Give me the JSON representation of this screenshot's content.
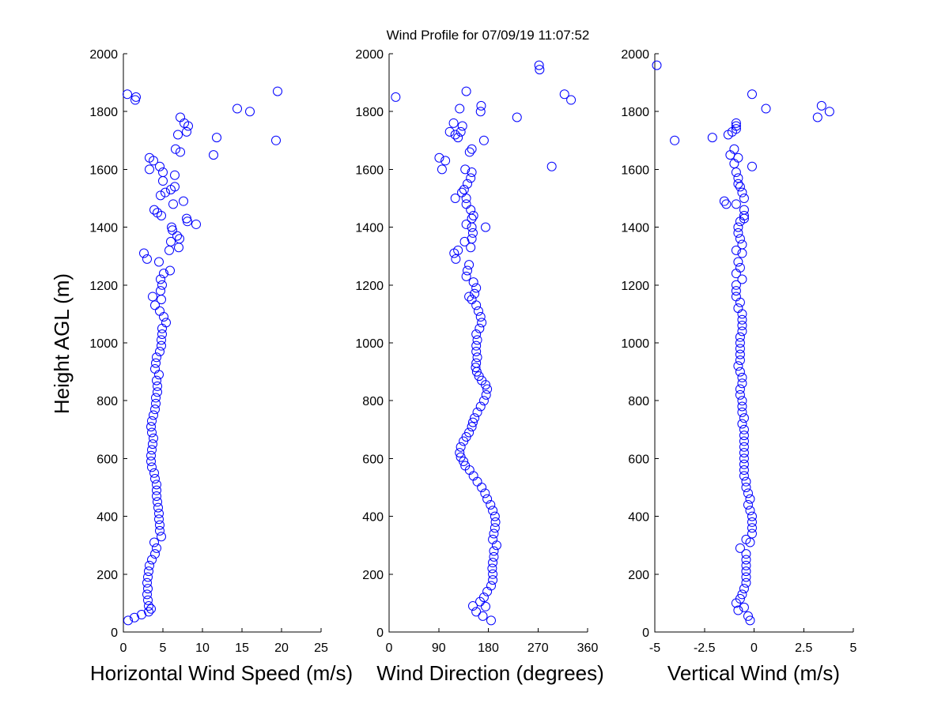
{
  "figure": {
    "title": "Wind Profile for  07/09/19 11:07:52",
    "ylabel": "Height AGL (m)"
  },
  "chart_data": [
    {
      "type": "scatter",
      "xlabel": "Horizontal Wind Speed (m/s)",
      "ylabel": "Height AGL (m)",
      "xlim": [
        0,
        25
      ],
      "ylim": [
        0,
        2000
      ],
      "xticks": [
        0,
        5,
        10,
        15,
        20,
        25
      ],
      "xtick_labels": [
        "0",
        "5",
        "10",
        "15",
        "20",
        "25"
      ],
      "yticks": [
        0,
        200,
        400,
        600,
        800,
        1000,
        1200,
        1400,
        1600,
        1800,
        2000
      ],
      "ytick_labels": [
        "0",
        "200",
        "400",
        "600",
        "800",
        "1000",
        "1200",
        "1400",
        "1600",
        "1800",
        "2000"
      ],
      "marker": "circle",
      "color": "#0000ff",
      "points": [
        [
          0.6,
          40
        ],
        [
          1.4,
          50
        ],
        [
          2.3,
          60
        ],
        [
          3.2,
          70
        ],
        [
          3.5,
          80
        ],
        [
          3.2,
          90
        ],
        [
          3.1,
          110
        ],
        [
          3.0,
          130
        ],
        [
          3.1,
          150
        ],
        [
          3.0,
          170
        ],
        [
          3.1,
          190
        ],
        [
          3.2,
          210
        ],
        [
          3.3,
          230
        ],
        [
          3.6,
          250
        ],
        [
          4.0,
          270
        ],
        [
          4.2,
          290
        ],
        [
          3.9,
          310
        ],
        [
          4.8,
          330
        ],
        [
          4.6,
          350
        ],
        [
          4.6,
          370
        ],
        [
          4.5,
          390
        ],
        [
          4.5,
          410
        ],
        [
          4.4,
          430
        ],
        [
          4.3,
          450
        ],
        [
          4.2,
          470
        ],
        [
          4.2,
          490
        ],
        [
          4.2,
          510
        ],
        [
          4.0,
          530
        ],
        [
          3.9,
          550
        ],
        [
          3.6,
          570
        ],
        [
          3.5,
          590
        ],
        [
          3.5,
          610
        ],
        [
          3.6,
          630
        ],
        [
          3.7,
          650
        ],
        [
          3.8,
          670
        ],
        [
          3.6,
          690
        ],
        [
          3.5,
          710
        ],
        [
          3.6,
          730
        ],
        [
          3.8,
          750
        ],
        [
          4.0,
          770
        ],
        [
          4.1,
          790
        ],
        [
          4.1,
          810
        ],
        [
          4.3,
          830
        ],
        [
          4.3,
          850
        ],
        [
          4.2,
          870
        ],
        [
          4.5,
          890
        ],
        [
          4.0,
          910
        ],
        [
          4.1,
          930
        ],
        [
          4.2,
          950
        ],
        [
          4.6,
          970
        ],
        [
          4.8,
          990
        ],
        [
          4.8,
          1010
        ],
        [
          4.9,
          1030
        ],
        [
          4.9,
          1050
        ],
        [
          5.4,
          1070
        ],
        [
          5.1,
          1090
        ],
        [
          4.6,
          1110
        ],
        [
          4.0,
          1130
        ],
        [
          4.8,
          1150
        ],
        [
          3.7,
          1160
        ],
        [
          4.7,
          1180
        ],
        [
          4.9,
          1200
        ],
        [
          4.7,
          1220
        ],
        [
          5.1,
          1240
        ],
        [
          5.9,
          1250
        ],
        [
          4.5,
          1280
        ],
        [
          3.0,
          1290
        ],
        [
          2.6,
          1310
        ],
        [
          5.8,
          1320
        ],
        [
          7.0,
          1330
        ],
        [
          6.0,
          1350
        ],
        [
          7.1,
          1360
        ],
        [
          6.8,
          1370
        ],
        [
          6.2,
          1390
        ],
        [
          6.1,
          1400
        ],
        [
          9.2,
          1410
        ],
        [
          8.1,
          1420
        ],
        [
          8.0,
          1430
        ],
        [
          4.8,
          1440
        ],
        [
          4.3,
          1450
        ],
        [
          3.9,
          1460
        ],
        [
          6.3,
          1480
        ],
        [
          7.6,
          1490
        ],
        [
          4.7,
          1510
        ],
        [
          5.3,
          1520
        ],
        [
          6.0,
          1530
        ],
        [
          6.5,
          1540
        ],
        [
          5.0,
          1560
        ],
        [
          6.5,
          1580
        ],
        [
          5.0,
          1590
        ],
        [
          3.3,
          1600
        ],
        [
          4.6,
          1610
        ],
        [
          3.8,
          1630
        ],
        [
          3.3,
          1640
        ],
        [
          11.4,
          1650
        ],
        [
          7.2,
          1660
        ],
        [
          6.6,
          1670
        ],
        [
          19.3,
          1700
        ],
        [
          11.8,
          1710
        ],
        [
          6.9,
          1720
        ],
        [
          8.0,
          1730
        ],
        [
          8.2,
          1750
        ],
        [
          7.7,
          1760
        ],
        [
          7.2,
          1780
        ],
        [
          16.0,
          1800
        ],
        [
          14.4,
          1810
        ],
        [
          1.5,
          1840
        ],
        [
          1.6,
          1850
        ],
        [
          0.5,
          1860
        ],
        [
          19.5,
          1870
        ]
      ]
    },
    {
      "type": "scatter",
      "xlabel": "Wind Direction (degrees)",
      "ylabel": "",
      "xlim": [
        0,
        360
      ],
      "ylim": [
        0,
        2000
      ],
      "xticks": [
        0,
        90,
        180,
        270,
        360
      ],
      "xtick_labels": [
        "0",
        "90",
        "180",
        "270",
        "360"
      ],
      "yticks": [
        0,
        200,
        400,
        600,
        800,
        1000,
        1200,
        1400,
        1600,
        1800,
        2000
      ],
      "ytick_labels": [
        "0",
        "200",
        "400",
        "600",
        "800",
        "1000",
        "1200",
        "1400",
        "1600",
        "1800",
        "2000"
      ],
      "marker": "circle",
      "color": "#0000ff",
      "points": [
        [
          185,
          40
        ],
        [
          170,
          55
        ],
        [
          158,
          70
        ],
        [
          152,
          90
        ],
        [
          175,
          88
        ],
        [
          165,
          105
        ],
        [
          172,
          120
        ],
        [
          178,
          140
        ],
        [
          185,
          160
        ],
        [
          188,
          180
        ],
        [
          188,
          200
        ],
        [
          187,
          220
        ],
        [
          188,
          240
        ],
        [
          190,
          260
        ],
        [
          190,
          280
        ],
        [
          195,
          300
        ],
        [
          188,
          320
        ],
        [
          190,
          340
        ],
        [
          192,
          360
        ],
        [
          193,
          380
        ],
        [
          192,
          400
        ],
        [
          188,
          420
        ],
        [
          184,
          440
        ],
        [
          178,
          460
        ],
        [
          174,
          480
        ],
        [
          168,
          500
        ],
        [
          160,
          520
        ],
        [
          153,
          540
        ],
        [
          146,
          560
        ],
        [
          138,
          575
        ],
        [
          135,
          590
        ],
        [
          130,
          605
        ],
        [
          128,
          620
        ],
        [
          130,
          640
        ],
        [
          135,
          660
        ],
        [
          140,
          675
        ],
        [
          145,
          690
        ],
        [
          150,
          710
        ],
        [
          152,
          725
        ],
        [
          155,
          740
        ],
        [
          160,
          760
        ],
        [
          166,
          780
        ],
        [
          172,
          800
        ],
        [
          176,
          820
        ],
        [
          178,
          840
        ],
        [
          175,
          855
        ],
        [
          168,
          870
        ],
        [
          163,
          885
        ],
        [
          159,
          900
        ],
        [
          157,
          915
        ],
        [
          158,
          930
        ],
        [
          160,
          950
        ],
        [
          158,
          970
        ],
        [
          158,
          990
        ],
        [
          160,
          1010
        ],
        [
          158,
          1030
        ],
        [
          164,
          1050
        ],
        [
          168,
          1070
        ],
        [
          166,
          1090
        ],
        [
          162,
          1110
        ],
        [
          158,
          1130
        ],
        [
          150,
          1150
        ],
        [
          145,
          1160
        ],
        [
          155,
          1170
        ],
        [
          158,
          1190
        ],
        [
          153,
          1210
        ],
        [
          140,
          1230
        ],
        [
          142,
          1250
        ],
        [
          145,
          1270
        ],
        [
          121,
          1290
        ],
        [
          118,
          1310
        ],
        [
          125,
          1320
        ],
        [
          148,
          1330
        ],
        [
          137,
          1350
        ],
        [
          150,
          1360
        ],
        [
          152,
          1380
        ],
        [
          150,
          1400
        ],
        [
          175,
          1400
        ],
        [
          140,
          1410
        ],
        [
          150,
          1430
        ],
        [
          153,
          1440
        ],
        [
          148,
          1460
        ],
        [
          140,
          1480
        ],
        [
          140,
          1500
        ],
        [
          120,
          1500
        ],
        [
          132,
          1520
        ],
        [
          136,
          1530
        ],
        [
          142,
          1550
        ],
        [
          148,
          1570
        ],
        [
          150,
          1590
        ],
        [
          138,
          1600
        ],
        [
          96,
          1600
        ],
        [
          102,
          1630
        ],
        [
          91,
          1640
        ],
        [
          295,
          1610
        ],
        [
          146,
          1660
        ],
        [
          150,
          1670
        ],
        [
          172,
          1700
        ],
        [
          125,
          1710
        ],
        [
          120,
          1720
        ],
        [
          110,
          1730
        ],
        [
          130,
          1730
        ],
        [
          133,
          1750
        ],
        [
          117,
          1760
        ],
        [
          232,
          1780
        ],
        [
          166,
          1800
        ],
        [
          167,
          1820
        ],
        [
          128,
          1810
        ],
        [
          330,
          1840
        ],
        [
          318,
          1860
        ],
        [
          12,
          1850
        ],
        [
          140,
          1870
        ],
        [
          273,
          1945
        ],
        [
          272,
          1960
        ]
      ]
    },
    {
      "type": "scatter",
      "xlabel": "Vertical Wind (m/s)",
      "ylabel": "",
      "xlim": [
        -5,
        5
      ],
      "ylim": [
        0,
        2000
      ],
      "xticks": [
        -5,
        -2.5,
        0,
        2.5,
        5
      ],
      "xtick_labels": [
        "-5",
        "-2.5",
        "0",
        "2.5",
        "5"
      ],
      "yticks": [
        0,
        200,
        400,
        600,
        800,
        1000,
        1200,
        1400,
        1600,
        1800,
        2000
      ],
      "ytick_labels": [
        "0",
        "200",
        "400",
        "600",
        "800",
        "1000",
        "1200",
        "1400",
        "1600",
        "1800",
        "2000"
      ],
      "marker": "circle",
      "color": "#0000ff",
      "points": [
        [
          -0.2,
          40
        ],
        [
          -0.3,
          55
        ],
        [
          -0.8,
          75
        ],
        [
          -0.5,
          85
        ],
        [
          -0.9,
          100
        ],
        [
          -0.7,
          115
        ],
        [
          -0.6,
          130
        ],
        [
          -0.5,
          150
        ],
        [
          -0.4,
          170
        ],
        [
          -0.4,
          190
        ],
        [
          -0.4,
          210
        ],
        [
          -0.4,
          230
        ],
        [
          -0.4,
          250
        ],
        [
          -0.4,
          270
        ],
        [
          -0.7,
          290
        ],
        [
          -0.2,
          310
        ],
        [
          -0.4,
          320
        ],
        [
          -0.1,
          340
        ],
        [
          -0.1,
          360
        ],
        [
          -0.1,
          380
        ],
        [
          -0.1,
          400
        ],
        [
          -0.2,
          420
        ],
        [
          -0.3,
          440
        ],
        [
          -0.2,
          460
        ],
        [
          -0.3,
          480
        ],
        [
          -0.4,
          500
        ],
        [
          -0.4,
          520
        ],
        [
          -0.5,
          540
        ],
        [
          -0.5,
          560
        ],
        [
          -0.5,
          580
        ],
        [
          -0.5,
          600
        ],
        [
          -0.5,
          620
        ],
        [
          -0.5,
          640
        ],
        [
          -0.5,
          660
        ],
        [
          -0.5,
          680
        ],
        [
          -0.5,
          700
        ],
        [
          -0.6,
          720
        ],
        [
          -0.5,
          740
        ],
        [
          -0.6,
          760
        ],
        [
          -0.6,
          780
        ],
        [
          -0.6,
          800
        ],
        [
          -0.7,
          820
        ],
        [
          -0.7,
          840
        ],
        [
          -0.6,
          860
        ],
        [
          -0.6,
          880
        ],
        [
          -0.7,
          900
        ],
        [
          -0.8,
          920
        ],
        [
          -0.7,
          940
        ],
        [
          -0.7,
          960
        ],
        [
          -0.7,
          980
        ],
        [
          -0.7,
          1000
        ],
        [
          -0.7,
          1020
        ],
        [
          -0.6,
          1040
        ],
        [
          -0.6,
          1060
        ],
        [
          -0.6,
          1080
        ],
        [
          -0.6,
          1100
        ],
        [
          -0.8,
          1120
        ],
        [
          -0.7,
          1140
        ],
        [
          -0.9,
          1160
        ],
        [
          -0.9,
          1180
        ],
        [
          -0.9,
          1200
        ],
        [
          -0.6,
          1220
        ],
        [
          -0.9,
          1240
        ],
        [
          -0.7,
          1260
        ],
        [
          -0.8,
          1280
        ],
        [
          -0.6,
          1310
        ],
        [
          -0.9,
          1320
        ],
        [
          -0.6,
          1340
        ],
        [
          -0.7,
          1360
        ],
        [
          -0.8,
          1380
        ],
        [
          -0.8,
          1400
        ],
        [
          -0.7,
          1420
        ],
        [
          -0.5,
          1430
        ],
        [
          -0.5,
          1440
        ],
        [
          -0.5,
          1460
        ],
        [
          -0.9,
          1480
        ],
        [
          -1.4,
          1480
        ],
        [
          -1.5,
          1490
        ],
        [
          -0.5,
          1500
        ],
        [
          -0.6,
          1520
        ],
        [
          -0.7,
          1540
        ],
        [
          -0.8,
          1550
        ],
        [
          -0.8,
          1570
        ],
        [
          -0.9,
          1590
        ],
        [
          -0.1,
          1610
        ],
        [
          -1.0,
          1620
        ],
        [
          -0.8,
          1640
        ],
        [
          -1.2,
          1650
        ],
        [
          -1.0,
          1670
        ],
        [
          -1.3,
          1720
        ],
        [
          -1.1,
          1730
        ],
        [
          -0.9,
          1740
        ],
        [
          -0.9,
          1750
        ],
        [
          -0.9,
          1760
        ],
        [
          -4.0,
          1700
        ],
        [
          -2.1,
          1710
        ],
        [
          -0.1,
          1860
        ],
        [
          0.6,
          1810
        ],
        [
          3.2,
          1780
        ],
        [
          3.8,
          1800
        ],
        [
          3.4,
          1820
        ],
        [
          -4.9,
          1960
        ]
      ]
    }
  ]
}
